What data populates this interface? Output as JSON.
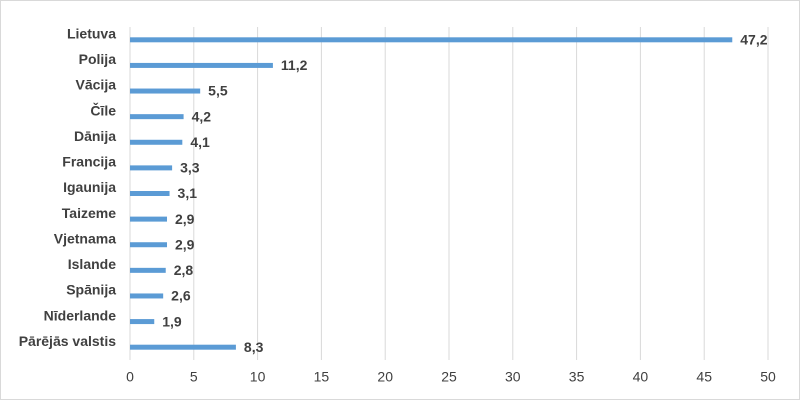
{
  "chart_data": {
    "type": "bar",
    "orientation": "horizontal",
    "categories": [
      "Lietuva",
      "Polija",
      "Vācija",
      "Čīle",
      "Dānija",
      "Francija",
      "Igaunija",
      "Taizeme",
      "Vjetnama",
      "Islande",
      "Spānija",
      "Nīderlande",
      "Pārējās valstis"
    ],
    "values": [
      47.2,
      11.2,
      5.5,
      4.2,
      4.1,
      3.3,
      3.1,
      2.9,
      2.9,
      2.8,
      2.6,
      1.9,
      8.3
    ],
    "value_labels": [
      "47,2",
      "11,2",
      "5,5",
      "4,2",
      "4,1",
      "3,3",
      "3,1",
      "2,9",
      "2,9",
      "2,8",
      "2,6",
      "1,9",
      "8,3"
    ],
    "color": "#5b9bd5",
    "xlim": [
      0,
      50
    ],
    "xticks": [
      0,
      5,
      10,
      15,
      20,
      25,
      30,
      35,
      40,
      45,
      50
    ],
    "grid": true
  }
}
